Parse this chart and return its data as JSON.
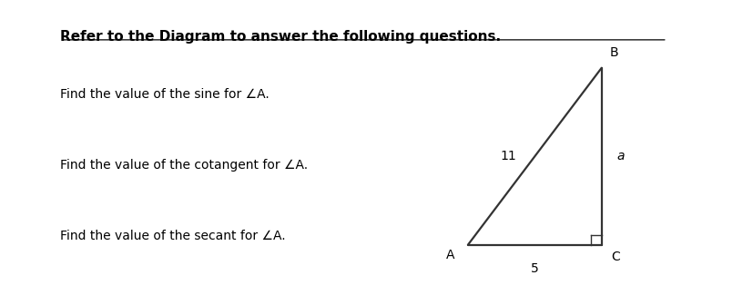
{
  "title": "Refer to the Diagram to answer the following questions.",
  "questions": [
    "Find the value of the sine for ∠A.",
    "Find the value of the cotangent for ∠A.",
    "Find the value of the secant for ∠A."
  ],
  "triangle": {
    "label_A": "A",
    "label_B": "B",
    "label_C": "C",
    "hypotenuse_label": "11",
    "base_label": "5",
    "side_label": "a"
  },
  "bg_color": "#ffffff",
  "text_color": "#000000",
  "line_color": "#333333",
  "font_size_title": 11,
  "font_size_questions": 10,
  "font_size_labels": 10
}
